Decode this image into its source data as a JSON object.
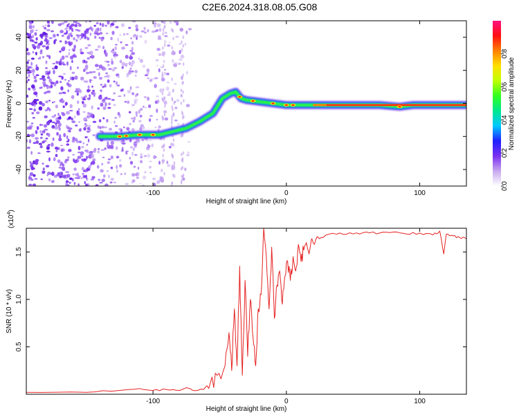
{
  "page": {
    "title": "C2E6.2024.318.08.05.G08"
  },
  "chart_data": [
    {
      "type": "heatmap",
      "id": "spectrogram",
      "xlabel": "Height of straight line (km)",
      "ylabel": "Frequency (Hz)",
      "xlim": [
        -195,
        135
      ],
      "ylim": [
        -50,
        50
      ],
      "xticks": [
        -100,
        0,
        100
      ],
      "xtick_labels": [
        "-100",
        "0",
        "100"
      ],
      "yticks": [
        -40,
        -20,
        0,
        20,
        40
      ],
      "ytick_labels": [
        "-40",
        "-20",
        "0",
        "20",
        "40"
      ],
      "colorbar": {
        "label": "Normalized spectral amplitude",
        "range": [
          0,
          1
        ],
        "ticks": [
          0.0,
          0.2,
          0.4,
          0.6,
          0.8
        ],
        "tick_labels": [
          "0.0",
          "0.2",
          "0.4",
          "0.6",
          "0.8"
        ],
        "colors": [
          "#ffffff",
          "#c8a8f0",
          "#7a30f0",
          "#2020ff",
          "#00c8ff",
          "#00e890",
          "#30ff20",
          "#c0ff00",
          "#ffe000",
          "#ff8000",
          "#ff1010",
          "#ff1080"
        ]
      },
      "signal_track": {
        "x": [
          -140,
          -125,
          -110,
          -95,
          -85,
          -75,
          -65,
          -55,
          -48,
          -42,
          -38,
          -34,
          -30,
          -20,
          -10,
          0,
          10,
          30,
          50,
          70,
          85,
          95,
          110,
          135
        ],
        "frequency": [
          -20,
          -20,
          -19,
          -19,
          -17,
          -15,
          -11,
          -6,
          3,
          6,
          7,
          3,
          2,
          1,
          0,
          -1,
          -1,
          -1,
          -1,
          -1,
          -2,
          -1,
          -1,
          -1
        ]
      },
      "noise_region_x": [
        -195,
        -72
      ]
    },
    {
      "type": "line",
      "id": "snr",
      "xlabel": "Height of straight line (km)",
      "ylabel": "SNR (10 * v/v)",
      "y_multiplier_label": "(x10",
      "y_multiplier_exp": "4",
      "y_multiplier_close": ")",
      "xlim": [
        -195,
        135
      ],
      "ylim": [
        0,
        17500
      ],
      "xticks": [
        -100,
        0,
        100
      ],
      "xtick_labels": [
        "-100",
        "0",
        "100"
      ],
      "yticks": [
        5000,
        10000,
        15000
      ],
      "ytick_labels": [
        "0.5",
        "1.0",
        "1.5"
      ],
      "line_color": "#e62020",
      "series": [
        {
          "x": [
            -195,
            -150,
            -125,
            -110,
            -100,
            -90,
            -80,
            -75,
            -70,
            -62,
            -57,
            -52,
            -46,
            -43,
            -41,
            -39,
            -37,
            -35,
            -33,
            -31,
            -29,
            -27,
            -25,
            -23,
            -21,
            -19,
            -17,
            -15,
            -13,
            -11,
            -9,
            -7,
            -5,
            -3,
            -1,
            1,
            3,
            5,
            7,
            9,
            11,
            13,
            15,
            17,
            19,
            21,
            23,
            25,
            30,
            40,
            50,
            60,
            70,
            80,
            90,
            100,
            110,
            115,
            118,
            120,
            125,
            130,
            135
          ],
          "values": [
            200,
            200,
            400,
            600,
            400,
            500,
            400,
            700,
            400,
            500,
            1200,
            2000,
            3000,
            6500,
            2500,
            9000,
            3000,
            13500,
            2000,
            12000,
            4000,
            10000,
            6000,
            3000,
            9000,
            10500,
            17500,
            14500,
            9000,
            15500,
            8000,
            11500,
            13000,
            9500,
            12500,
            14000,
            12000,
            14500,
            13000,
            15800,
            14000,
            15200,
            16000,
            14800,
            16400,
            15800,
            16600,
            16400,
            16800,
            17000,
            16900,
            17100,
            17000,
            17100,
            16900,
            17000,
            16800,
            17200,
            14800,
            16900,
            16700,
            16500,
            16400
          ]
        }
      ]
    }
  ]
}
